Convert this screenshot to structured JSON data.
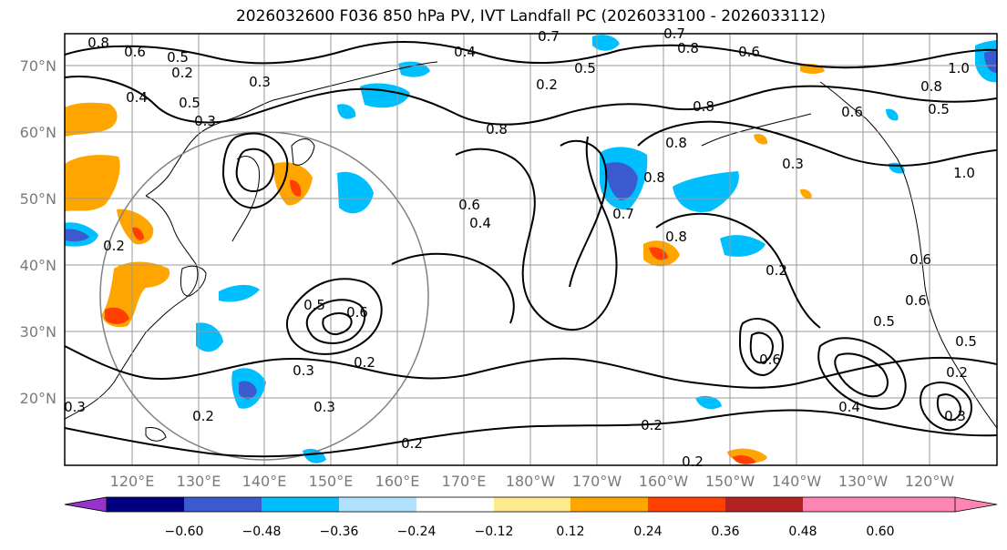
{
  "title": "2026032600 F036 850 hPa PV, IVT Landfall PC (2026033100 - 2026033112)",
  "lat_labels": [
    "70°N",
    "60°N",
    "50°N",
    "40°N",
    "30°N",
    "20°N"
  ],
  "lon_labels": [
    "120°E",
    "130°E",
    "140°E",
    "150°E",
    "160°E",
    "170°E",
    "180°W",
    "170°W",
    "160°W",
    "150°W",
    "140°W",
    "130°W",
    "120°W"
  ],
  "colorbar": {
    "colors": [
      "#9932cc",
      "#000080",
      "#3a5bcf",
      "#00bfff",
      "#b0e2ff",
      "#ffffff",
      "#ffe98a",
      "#ffa500",
      "#ff4000",
      "#b22222",
      "#ff85b5"
    ],
    "labels": [
      "−0.60",
      "−0.48",
      "−0.36",
      "−0.24",
      "−0.12",
      "0.12",
      "0.24",
      "0.36",
      "0.48",
      "0.60"
    ]
  },
  "contour_labels": [
    "0.8",
    "0.6",
    "0.5",
    "0.4",
    "0.3",
    "0.5",
    "0.3",
    "0.4",
    "0.2",
    "0.5",
    "0.6",
    "0.2",
    "0.3",
    "0.2",
    "0.3",
    "0.3",
    "0.2",
    "0.4",
    "0.6",
    "0.8",
    "0.7",
    "0.7",
    "0.8",
    "0.8",
    "0.6",
    "0.8",
    "0.8",
    "0.7",
    "0.8",
    "0.3",
    "0.6",
    "0.2",
    "0.6",
    "0.5",
    "0.6",
    "0.6",
    "1.0",
    "1.0",
    "0.5",
    "0.8",
    "0.2",
    "0.5",
    "0.2",
    "0.3",
    "0.4",
    "0.2",
    "0.2",
    "0.2",
    "0.5"
  ]
}
